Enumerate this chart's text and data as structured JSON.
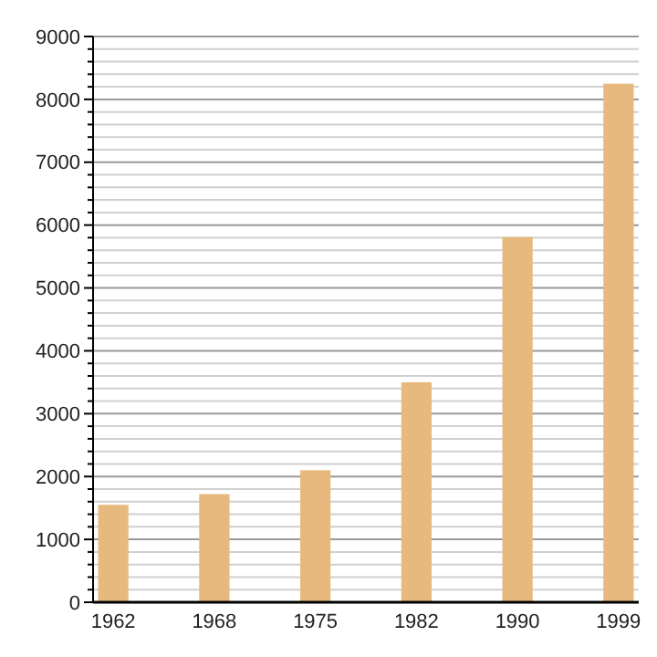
{
  "chart_data": {
    "type": "bar",
    "categories": [
      "1962",
      "1968",
      "1975",
      "1982",
      "1990",
      "1999"
    ],
    "values": [
      1550,
      1720,
      2100,
      3500,
      5810,
      8250
    ],
    "color": "#e8b97e",
    "ylim": [
      0,
      9000
    ],
    "yticks": [
      0,
      {
        "value": 200,
        "label": null
      },
      {
        "value": 400,
        "label": null
      },
      {
        "value": 600,
        "label": null
      },
      {
        "value": 800,
        "label": null
      },
      1000,
      {
        "value": 1200,
        "label": null
      },
      {
        "value": 1400,
        "label": null
      },
      {
        "value": 1600,
        "label": null
      },
      {
        "value": 1800,
        "label": null
      },
      2000,
      {
        "value": 2200,
        "label": null
      },
      {
        "value": 2400,
        "label": null
      },
      {
        "value": 2600,
        "label": null
      },
      {
        "value": 2800,
        "label": null
      },
      3000,
      {
        "value": 3200,
        "label": null
      },
      {
        "value": 3400,
        "label": null
      },
      {
        "value": 3600,
        "label": null
      },
      {
        "value": 3800,
        "label": null
      },
      4000,
      {
        "value": 4200,
        "label": null
      },
      {
        "value": 4400,
        "label": null
      },
      {
        "value": 4600,
        "label": null
      },
      {
        "value": 4800,
        "label": null
      },
      5000,
      {
        "value": 5200,
        "label": null
      },
      {
        "value": 5400,
        "label": null
      },
      {
        "value": 5600,
        "label": null
      },
      {
        "value": 5800,
        "label": null
      },
      6000,
      {
        "value": 6200,
        "label": null
      },
      {
        "value": 6400,
        "label": null
      },
      {
        "value": 6600,
        "label": null
      },
      {
        "value": 6800,
        "label": null
      },
      7000,
      {
        "value": 7200,
        "label": null
      },
      {
        "value": 7400,
        "label": null
      },
      {
        "value": 7600,
        "label": null
      },
      {
        "value": 7800,
        "label": null
      },
      8000,
      {
        "value": 8200,
        "label": null
      },
      {
        "value": 8400,
        "label": null
      },
      {
        "value": 8600,
        "label": null
      },
      {
        "value": 8800,
        "label": null
      },
      9000
    ],
    "grid": "y"
  }
}
